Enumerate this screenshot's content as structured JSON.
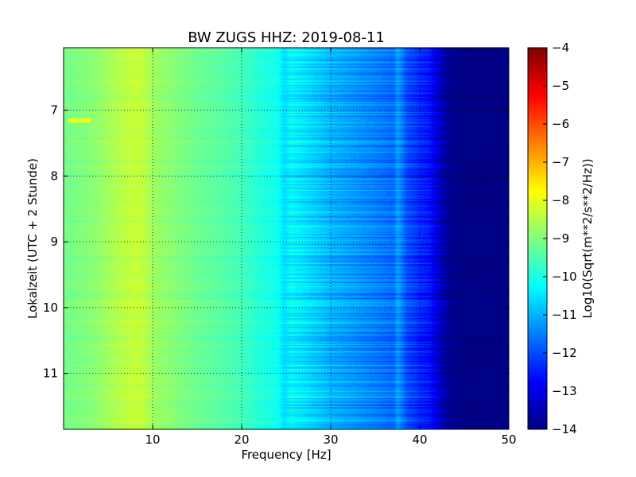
{
  "chart_data": {
    "type": "heatmap",
    "title": "BW ZUGS HHZ: 2019-08-11",
    "xlabel": "Frequency [Hz]",
    "ylabel": "Lokalzeit (UTC + 2 Stunde)",
    "xlim": [
      0,
      50
    ],
    "ylim": [
      11.85,
      6.05
    ],
    "y_axis_inverted": true,
    "grid": true,
    "x_ticks": [
      10,
      20,
      30,
      40,
      50
    ],
    "y_ticks": [
      7,
      8,
      9,
      10,
      11
    ],
    "colormap": "jet",
    "colorbar": {
      "label": "Log10(Sqrt(m**2/s**2/Hz))",
      "range": [
        -14,
        -4
      ],
      "ticks": [
        -4,
        -5,
        -6,
        -7,
        -8,
        -9,
        -10,
        -11,
        -12,
        -13,
        -14
      ]
    },
    "spectrum_profile": {
      "frequency_hz": [
        0,
        2,
        4,
        6,
        8,
        9,
        10,
        12,
        15,
        18,
        20,
        22,
        24,
        24.7,
        25.5,
        28,
        30,
        33,
        35,
        37,
        37.5,
        38.5,
        40,
        41,
        42,
        43,
        45,
        50
      ],
      "log_psd": [
        -9.1,
        -9.0,
        -8.8,
        -8.5,
        -8.3,
        -8.4,
        -8.7,
        -8.9,
        -9.2,
        -9.4,
        -9.6,
        -9.9,
        -10.1,
        -10.6,
        -10.3,
        -10.7,
        -11.0,
        -11.3,
        -11.5,
        -11.7,
        -11.2,
        -12.0,
        -12.4,
        -12.6,
        -13.2,
        -13.8,
        -14.0,
        -14.0
      ]
    },
    "features": [
      {
        "type": "spectral_line",
        "frequency_hz": 24.7
      },
      {
        "type": "spectral_line",
        "frequency_hz": 37.5
      },
      {
        "type": "transient",
        "frequency_hz": [
          0.5,
          3.0
        ],
        "time": 7.15
      }
    ]
  },
  "colors": {
    "colormap_stops": [
      "#00007f",
      "#0000ff",
      "#007fff",
      "#00ffff",
      "#7fff7f",
      "#ffff00",
      "#ff7f00",
      "#ff0000",
      "#7f0000"
    ],
    "axis": "#000000",
    "grid": "#000000"
  }
}
